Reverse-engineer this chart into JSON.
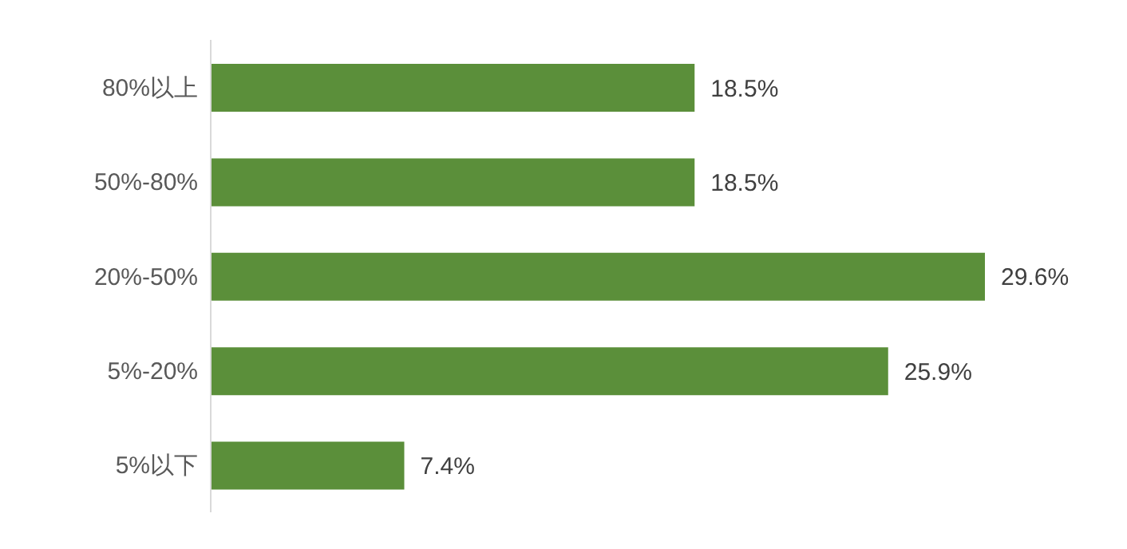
{
  "chart_data": {
    "type": "bar",
    "orientation": "horizontal",
    "categories": [
      "80%以上",
      "50%-80%",
      "20%-50%",
      "5%-20%",
      "5%以下"
    ],
    "values": [
      18.5,
      18.5,
      29.6,
      25.9,
      7.4
    ],
    "color": "#5b8f3a",
    "value_labels": [
      "18.5%",
      "18.5%",
      "29.6%",
      "25.9%",
      "7.4%"
    ]
  }
}
